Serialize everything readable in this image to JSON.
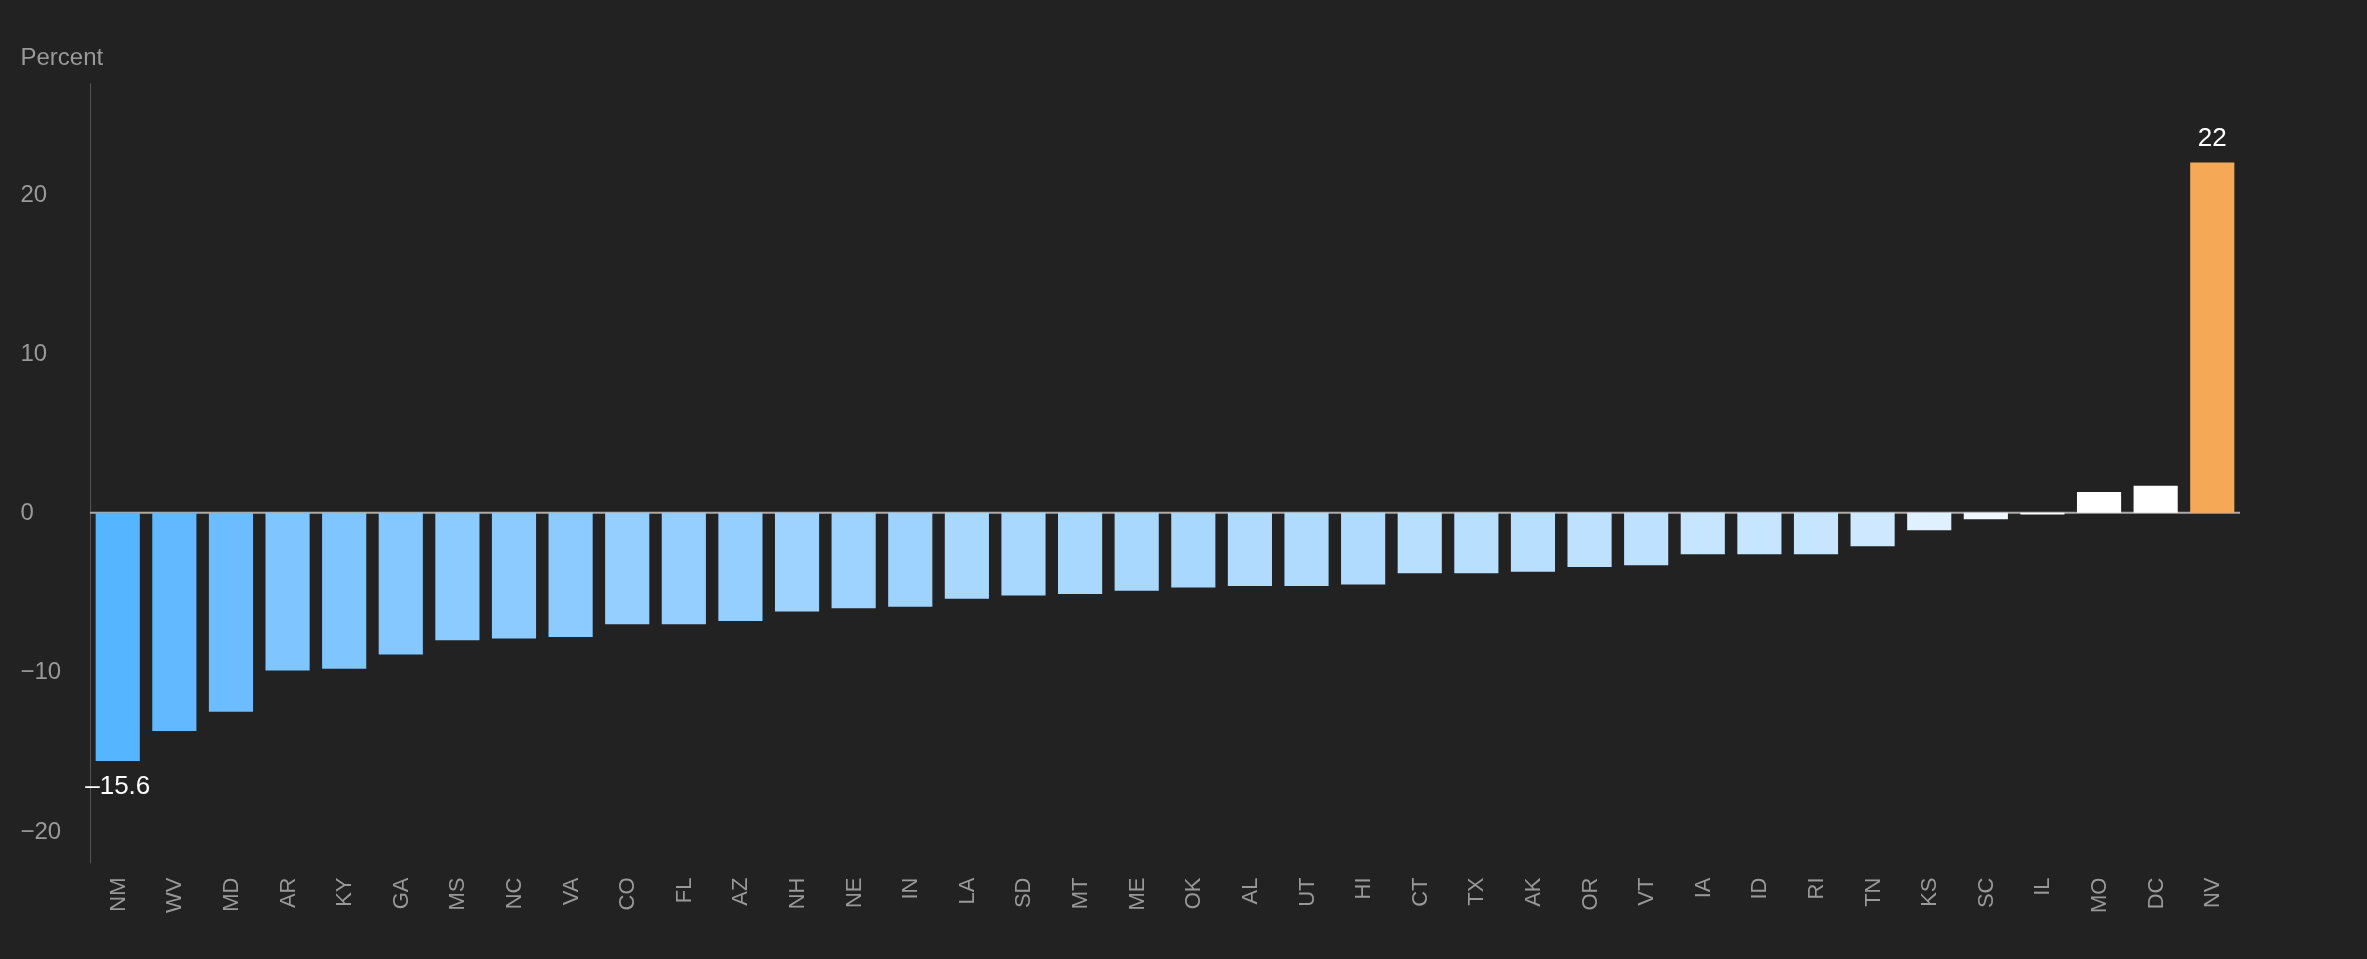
{
  "chart_data": {
    "type": "bar",
    "ylabel": "Percent",
    "categories": [
      "NM",
      "WV",
      "MD",
      "AR",
      "KY",
      "GA",
      "MS",
      "NC",
      "VA",
      "CO",
      "FL",
      "AZ",
      "NH",
      "NE",
      "IN",
      "LA",
      "SD",
      "MT",
      "ME",
      "OK",
      "AL",
      "UT",
      "HI",
      "CT",
      "TX",
      "AK",
      "OR",
      "VT",
      "IA",
      "ID",
      "RI",
      "TN",
      "KS",
      "SC",
      "IL",
      "MO",
      "DC",
      "NV"
    ],
    "values": [
      -15.6,
      -13.7,
      -12.5,
      -9.9,
      -9.8,
      -8.9,
      -8.0,
      -7.9,
      -7.8,
      -7.0,
      -7.0,
      -6.8,
      -6.2,
      -6.0,
      -5.9,
      -5.4,
      -5.2,
      -5.1,
      -4.9,
      -4.7,
      -4.6,
      -4.6,
      -4.5,
      -3.8,
      -3.8,
      -3.7,
      -3.4,
      -3.3,
      -2.6,
      -2.6,
      -2.6,
      -2.1,
      -1.1,
      -0.4,
      -0.1,
      1.3,
      1.7,
      22
    ],
    "colors": [
      "#55b5ff",
      "#62b9ff",
      "#6bbdff",
      "#7fc5ff",
      "#7fc5ff",
      "#85c8ff",
      "#8ccbff",
      "#8ccbff",
      "#8ccbff",
      "#95cfff",
      "#95cfff",
      "#95cfff",
      "#9fd3ff",
      "#9fd3ff",
      "#9fd3ff",
      "#a9d8ff",
      "#a9d8ff",
      "#a9d8ff",
      "#a9d8ff",
      "#a9d8ff",
      "#b0dbff",
      "#b0dbff",
      "#b0dbff",
      "#b9dfff",
      "#b9dfff",
      "#b9dfff",
      "#bee1ff",
      "#bee1ff",
      "#c6e5ff",
      "#c6e5ff",
      "#c6e5ff",
      "#cde8ff",
      "#dff0ff",
      "#f0f7ff",
      "#ffffff",
      "#ffffff",
      "#ffffff",
      "#f5a957"
    ],
    "value_labels": [
      "–15.6",
      null,
      null,
      null,
      null,
      null,
      null,
      null,
      null,
      null,
      null,
      null,
      null,
      null,
      null,
      null,
      null,
      null,
      null,
      null,
      null,
      null,
      null,
      null,
      null,
      null,
      null,
      null,
      null,
      null,
      null,
      null,
      null,
      null,
      null,
      null,
      null,
      "22"
    ],
    "ylim": [
      -22,
      27
    ],
    "yticks": [
      -20,
      -10,
      0,
      10,
      20
    ],
    "ref_lines": [
      {
        "axis": "y",
        "value": 0,
        "color": "#aaaaaa"
      }
    ],
    "grid": false
  }
}
